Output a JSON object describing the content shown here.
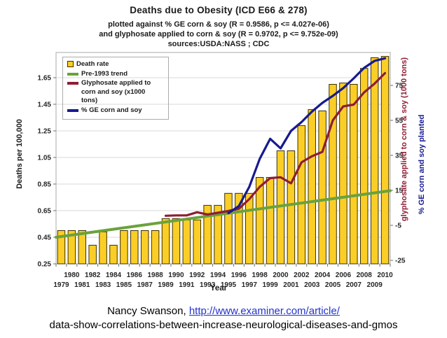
{
  "title": "Deaths due to Obesity (ICD E66 & 278)",
  "subtitle1": "plotted against % GE corn & soy (R = 0.9586, p <= 4.027e-06)",
  "subtitle2": "and glyphosate applied to corn & soy (R = 0.9702, p <= 9.752e-09)",
  "subtitle3": "sources:USDA:NASS ; CDC",
  "axes": {
    "left_label": "Deaths per 100,000",
    "right_label_glyphosate": "glyphosate applied to corn & soy (1000 tons)",
    "right_label_ge": "% GE corn and soy planted",
    "x_label": "Year"
  },
  "legend": {
    "items": [
      {
        "label": "Death rate",
        "swatch": "bar"
      },
      {
        "label": "Pre-1993 trend",
        "swatch": "line-green"
      },
      {
        "label": "Glyphosate applied to corn and soy (x1000 tons)",
        "swatch": "line-maroon"
      },
      {
        "label": "% GE corn and soy",
        "swatch": "line-navy"
      }
    ]
  },
  "footer": {
    "prefix": "Nancy Swanson, ",
    "link": "http://www.examiner.com/article/",
    "line2": "data-show-correlations-between-increase-neurological-diseases-and-gmos"
  },
  "colors": {
    "bar_fill": "#FBCE27",
    "bar_border": "#3B3000",
    "trend_green": "#6AA23C",
    "glyphosate_maroon": "#8E1D33",
    "ge_navy": "#171A8F",
    "gridline": "#D9D9D9",
    "frame": "#ABABAB",
    "tick_text": "#262626",
    "link_blue": "#2233CC"
  },
  "chart_data": {
    "type": "bar",
    "title": "Deaths due to Obesity (ICD E66 & 278)",
    "xlabel": "Year",
    "ylabel_left": "Deaths per 100,000",
    "ylabel_right": "glyphosate applied to corn & soy (1000 tons) / % GE corn and soy planted",
    "x": [
      1979,
      1980,
      1981,
      1982,
      1983,
      1984,
      1985,
      1986,
      1987,
      1988,
      1989,
      1990,
      1991,
      1992,
      1993,
      1994,
      1995,
      1996,
      1997,
      1998,
      1999,
      2000,
      2001,
      2002,
      2003,
      2004,
      2005,
      2006,
      2007,
      2008,
      2009,
      2010
    ],
    "series": [
      {
        "name": "Death rate",
        "type": "bar",
        "axis": "left",
        "start_year": 1979,
        "values": [
          0.5,
          0.5,
          0.5,
          0.39,
          0.49,
          0.39,
          0.5,
          0.5,
          0.5,
          0.5,
          0.59,
          0.59,
          0.58,
          0.58,
          0.69,
          0.69,
          0.78,
          0.78,
          0.78,
          0.9,
          0.9,
          1.1,
          1.1,
          1.29,
          1.41,
          1.4,
          1.6,
          1.61,
          1.6,
          1.72,
          1.8,
          1.81
        ]
      },
      {
        "name": "Pre-1993 trend",
        "type": "trend-line",
        "axis": "left",
        "endpoints": [
          0.45,
          0.8
        ]
      },
      {
        "name": "Glyphosate applied to corn and soy (x1000 tons)",
        "type": "line",
        "axis": "right",
        "start_year": 1989,
        "values": [
          0.5,
          0.7,
          0.7,
          2.5,
          1.2,
          2.2,
          3.2,
          4.5,
          10,
          17,
          22,
          22.5,
          19,
          31,
          34.5,
          37,
          55,
          63,
          64,
          71,
          76,
          82
        ]
      },
      {
        "name": "% GE corn and soy",
        "type": "line",
        "axis": "right",
        "start_year": 1995,
        "values": [
          2,
          6,
          17,
          33,
          44.5,
          39,
          49,
          54,
          60,
          65,
          69,
          73.5,
          79,
          85,
          89,
          90.5
        ]
      }
    ],
    "left_axis": {
      "ticks": [
        0.25,
        0.45,
        0.65,
        0.85,
        1.05,
        1.25,
        1.45,
        1.65
      ],
      "min": 0.25,
      "max": 1.84,
      "grid": true
    },
    "right_axis": {
      "ticks": [
        -25,
        -5,
        15,
        35,
        55,
        75
      ],
      "min": -27,
      "max": 94,
      "grid": false
    },
    "legend_position": "top-left"
  }
}
